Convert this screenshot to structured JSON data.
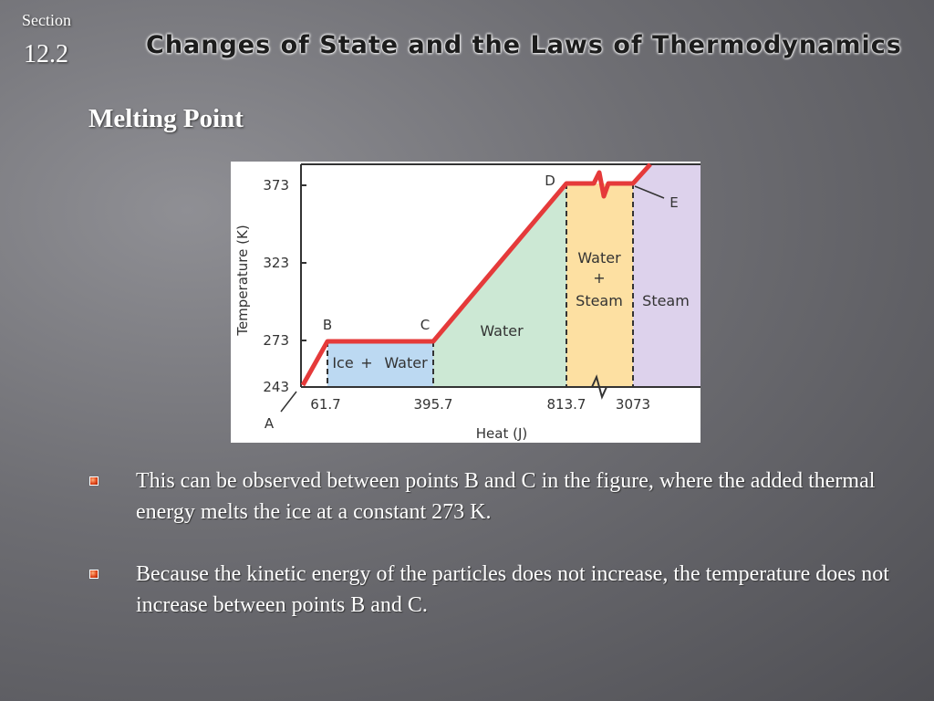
{
  "header": {
    "section_label": "Section",
    "section_number": "12.2",
    "title": "Changes of State and the Laws of Thermodynamics"
  },
  "subtitle": "Melting Point",
  "figure": {
    "ylabel": "Temperature (K)",
    "xlabel": "Heat (J)",
    "y_ticks": [
      "373",
      "323",
      "273",
      "243"
    ],
    "x_ticks": [
      "61.7",
      "395.7",
      "813.7",
      "3073"
    ],
    "points": [
      "A",
      "B",
      "C",
      "D",
      "E"
    ],
    "regions": {
      "ice_water": [
        "Ice",
        "+",
        "Water"
      ],
      "water": "Water",
      "water_steam": [
        "Water",
        "+",
        "Steam"
      ],
      "steam": "Steam"
    },
    "colors": {
      "curve": "#e53a3a",
      "ice_water": "#bcd9f2",
      "water": "#cce8d4",
      "water_steam": "#fde0a2",
      "steam": "#ddd2ec"
    }
  },
  "bullets": [
    "This can be observed between points B and C in the figure, where the added thermal energy melts the ice at a constant 273 K.",
    "Because the kinetic energy of the particles does not increase, the temperature does not increase between points B and C."
  ]
}
